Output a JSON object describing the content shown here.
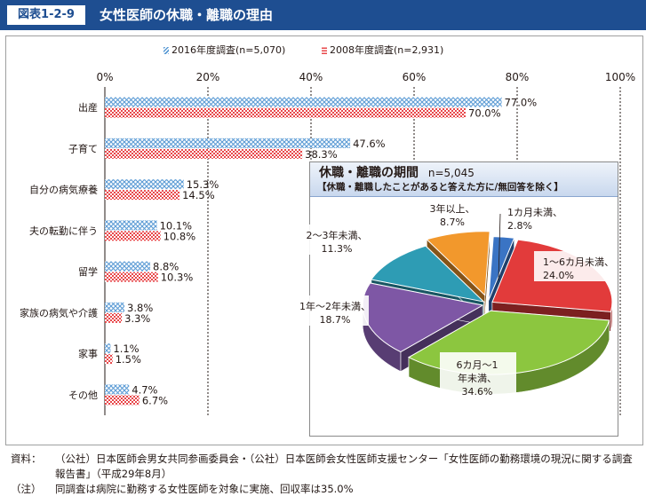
{
  "header": {
    "fig_label": "図表1-2-9",
    "title": "女性医師の休職・離職の理由"
  },
  "chart_data": [
    {
      "type": "bar",
      "orientation": "horizontal",
      "categories": [
        "出産",
        "子育て",
        "自分の病気療養",
        "夫の転勤に伴う",
        "留学",
        "家族の病気や介護",
        "家事",
        "その他"
      ],
      "series": [
        {
          "name": "2016年度調査(n=5,070)",
          "values": [
            77.0,
            47.6,
            15.3,
            10.1,
            8.8,
            3.8,
            1.1,
            4.7
          ],
          "labels": [
            "77.0%",
            "47.6%",
            "15.3%",
            "10.1%",
            "8.8%",
            "3.8%",
            "1.1%",
            "4.7%"
          ],
          "color": "#5b9bd5"
        },
        {
          "name": "2008年度調査(n=2,931)",
          "values": [
            70.0,
            38.3,
            14.5,
            10.8,
            10.3,
            3.3,
            1.5,
            6.7
          ],
          "labels": [
            "70.0%",
            "38.3%",
            "14.5%",
            "10.8%",
            "10.3%",
            "3.3%",
            "1.5%",
            "6.7%"
          ],
          "color": "#e8474a"
        }
      ],
      "xlim": [
        0,
        100
      ],
      "xticks": [
        "0%",
        "20%",
        "40%",
        "60%",
        "80%",
        "100%"
      ],
      "legend_position": "top",
      "grid": "dashed vertical"
    },
    {
      "type": "pie",
      "title": "休職・離職の期間",
      "n_label": "n=5,045",
      "subtitle": "【休職・離職したことがあると答えた方に/無回答を除く】",
      "slices": [
        {
          "label": "1カ月未満、",
          "value_label": "2.8%",
          "value": 2.8,
          "color": "#3a74c4"
        },
        {
          "label": "1～6カ月未満、",
          "value_label": "24.0%",
          "value": 24.0,
          "color": "#e23b3b"
        },
        {
          "label": "6カ月～1年未満、",
          "value_label": "34.6%",
          "value": 34.6,
          "color": "#8cc63f"
        },
        {
          "label": "1年～2年未満、",
          "value_label": "18.7%",
          "value": 18.7,
          "color": "#7e57a5"
        },
        {
          "label": "2～3年未満、",
          "value_label": "11.3%",
          "value": 11.3,
          "color": "#2e9cb4"
        },
        {
          "label": "3年以上、",
          "value_label": "8.7%",
          "value": 8.7,
          "color": "#f2982c"
        }
      ]
    }
  ],
  "source": {
    "key1": "資料：",
    "text1": "（公社）日本医師会男女共同参画委員会・（公社）日本医師会女性医師支援センター「女性医師の勤務環境の現況に関する調査報告書」（平成29年8月）",
    "key2": "（注）",
    "text2": "同調査は病院に勤務する女性医師を対象に実施、回収率は35.0%"
  }
}
